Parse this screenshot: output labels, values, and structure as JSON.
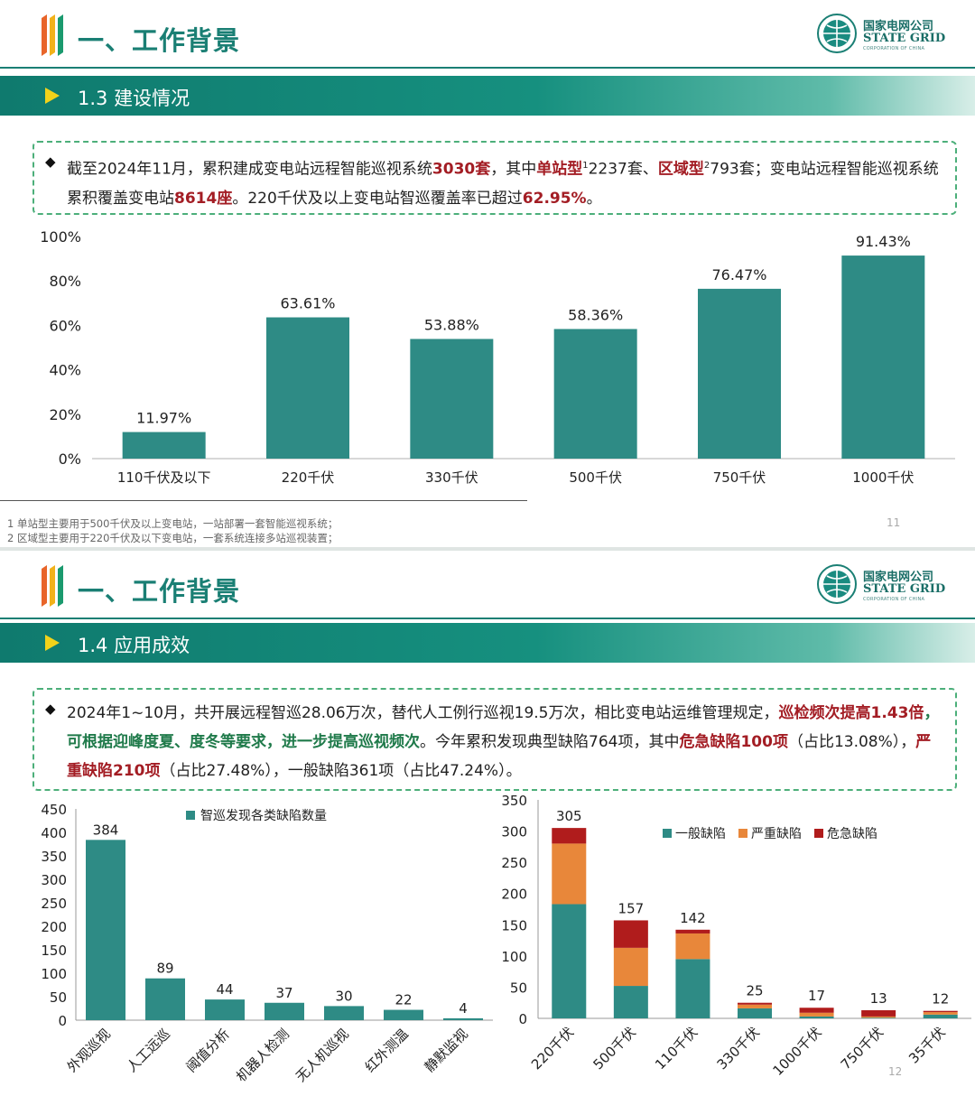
{
  "slide1": {
    "title": "一、工作背景",
    "logo": {
      "cn": "国家电网公司",
      "en": "STATE GRID",
      "sub": "CORPORATION OF CHINA"
    },
    "section": "1.3 建设情况",
    "para": {
      "p1": "截至2024年11月，累积建成变电站远程智能巡视系统",
      "h1": "3030套",
      "p2": "，其中",
      "h2": "单站型",
      "sup1": "1",
      "p3": "2237套、",
      "h3": "区域型",
      "sup2": "2",
      "p4": "793套；变电站远程智能巡视系统累积覆盖变电站",
      "h4": "8614座",
      "p5": "。220千伏及以上变电站智巡覆盖率已超过",
      "h5": "62.95%",
      "p6": "。"
    },
    "footnote1": "1 单站型主要用于500千伏及以上变电站，一站部署一套智能巡视系统；",
    "footnote2": "2 区域型主要用于220千伏及以下变电站，一套系统连接多站巡视装置；",
    "page": "11"
  },
  "slide2": {
    "title": "一、工作背景",
    "logo": {
      "cn": "国家电网公司",
      "en": "STATE GRID",
      "sub": "CORPORATION OF CHINA"
    },
    "section": "1.4 应用成效",
    "para": {
      "p1": "2024年1~10月，共开展远程智巡28.06万次，替代人工例行巡视19.5万次，相比变电站运维管理规定，",
      "h1": "巡检频次提高1.43倍",
      "g1": "，可根据迎峰度夏、度冬等要求，进一步提高巡视频次",
      "p2": "。今年累积发现典型缺陷764项，其中",
      "h2": "危急缺陷100项",
      "p3": "（占比13.08%），",
      "h3": "严重缺陷210项",
      "p4": "（占比27.48%），一般缺陷361项（占比47.24%）。"
    },
    "page": "12"
  },
  "colors": {
    "teal": "#2e8b85",
    "orange": "#e8873a",
    "red": "#b01c1c",
    "darkteal": "#1a7f74"
  },
  "chart_data": [
    {
      "type": "bar",
      "categories": [
        "110千伏及以下",
        "220千伏",
        "330千伏",
        "500千伏",
        "750千伏",
        "1000千伏"
      ],
      "values": [
        11.97,
        63.61,
        53.88,
        58.36,
        76.47,
        91.43
      ],
      "value_labels": [
        "11.97%",
        "63.61%",
        "53.88%",
        "58.36%",
        "76.47%",
        "91.43%"
      ],
      "yticks": [
        "0%",
        "20%",
        "40%",
        "60%",
        "80%",
        "100%"
      ],
      "ylim": [
        0,
        100
      ],
      "grid": false
    },
    {
      "type": "bar",
      "legend": "智巡发现各类缺陷数量",
      "categories": [
        "外观巡视",
        "人工远巡",
        "阈值分析",
        "机器人检测",
        "无人机巡视",
        "红外测温",
        "静默监视"
      ],
      "values": [
        384,
        89,
        44,
        37,
        30,
        22,
        4
      ],
      "yticks": [
        "0",
        "50",
        "100",
        "150",
        "200",
        "250",
        "300",
        "350",
        "400",
        "450"
      ],
      "ylim": [
        0,
        450
      ],
      "legend_position": "top"
    },
    {
      "type": "bar",
      "stacked": true,
      "categories": [
        "220千伏",
        "500千伏",
        "110千伏",
        "330千伏",
        "1000千伏",
        "750千伏",
        "35千伏"
      ],
      "totals": [
        305,
        157,
        142,
        25,
        17,
        13,
        12
      ],
      "series": [
        {
          "name": "一般缺陷",
          "values": [
            183,
            52,
            95,
            16,
            3,
            1,
            6
          ]
        },
        {
          "name": "严重缺陷",
          "values": [
            97,
            61,
            41,
            6,
            6,
            2,
            4
          ]
        },
        {
          "name": "危急缺陷",
          "values": [
            25,
            44,
            6,
            3,
            8,
            10,
            2
          ]
        }
      ],
      "yticks": [
        "0",
        "50",
        "100",
        "150",
        "200",
        "250",
        "300",
        "350"
      ],
      "ylim": [
        0,
        350
      ],
      "legend_position": "top-right"
    }
  ]
}
